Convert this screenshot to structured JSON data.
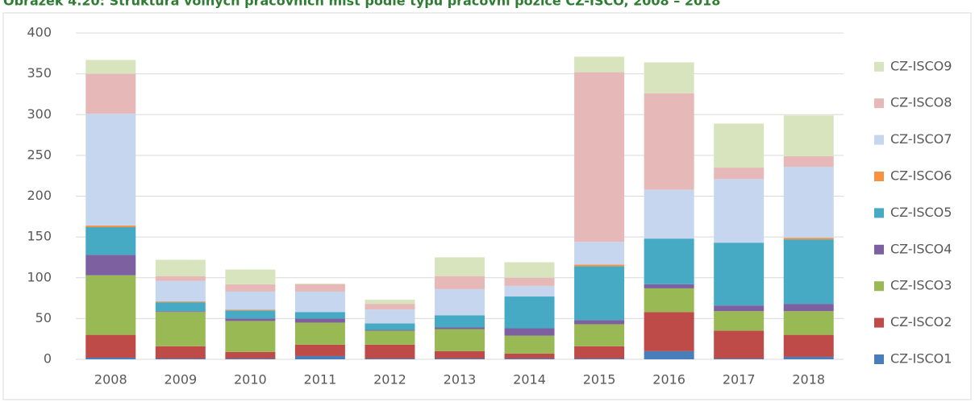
{
  "chart_data": {
    "type": "bar",
    "stacked": true,
    "title": "Obrázek 4.20: Struktura volných pracovních míst podle typu pracovní pozice CZ-ISCO, 2008 – 2018",
    "categories": [
      "2008",
      "2009",
      "2010",
      "2011",
      "2012",
      "2013",
      "2014",
      "2015",
      "2016",
      "2017",
      "2018"
    ],
    "series": [
      {
        "name": "CZ-ISCO1",
        "color": "#4a7ebb",
        "values": [
          2,
          1,
          1,
          4,
          1,
          1,
          1,
          1,
          10,
          1,
          3
        ]
      },
      {
        "name": "CZ-ISCO2",
        "color": "#be4b48",
        "values": [
          28,
          15,
          8,
          14,
          17,
          9,
          6,
          15,
          48,
          34,
          27
        ]
      },
      {
        "name": "CZ-ISCO3",
        "color": "#98b954",
        "values": [
          73,
          42,
          38,
          27,
          17,
          27,
          22,
          27,
          29,
          24,
          29
        ]
      },
      {
        "name": "CZ-ISCO4",
        "color": "#7d60a0",
        "values": [
          25,
          1,
          3,
          5,
          1,
          2,
          9,
          5,
          5,
          7,
          9
        ]
      },
      {
        "name": "CZ-ISCO5",
        "color": "#46aac5",
        "values": [
          34,
          11,
          10,
          8,
          8,
          15,
          39,
          66,
          56,
          77,
          79
        ]
      },
      {
        "name": "CZ-ISCO6",
        "color": "#f69240",
        "values": [
          2,
          1,
          1,
          0,
          0,
          0,
          0,
          2,
          0,
          0,
          2
        ]
      },
      {
        "name": "CZ-ISCO7",
        "color": "#c6d6ee",
        "values": [
          137,
          25,
          22,
          25,
          17,
          32,
          13,
          28,
          60,
          78,
          87
        ]
      },
      {
        "name": "CZ-ISCO8",
        "color": "#e6b9b8",
        "values": [
          49,
          6,
          9,
          9,
          7,
          16,
          10,
          208,
          118,
          14,
          13
        ]
      },
      {
        "name": "CZ-ISCO9",
        "color": "#d7e4bd",
        "values": [
          17,
          20,
          18,
          1,
          5,
          23,
          19,
          19,
          38,
          54,
          50
        ]
      }
    ],
    "ylim": [
      0,
      400
    ],
    "yticks": [
      0,
      50,
      100,
      150,
      200,
      250,
      300,
      350,
      400
    ],
    "grid": true,
    "legend": "right"
  }
}
